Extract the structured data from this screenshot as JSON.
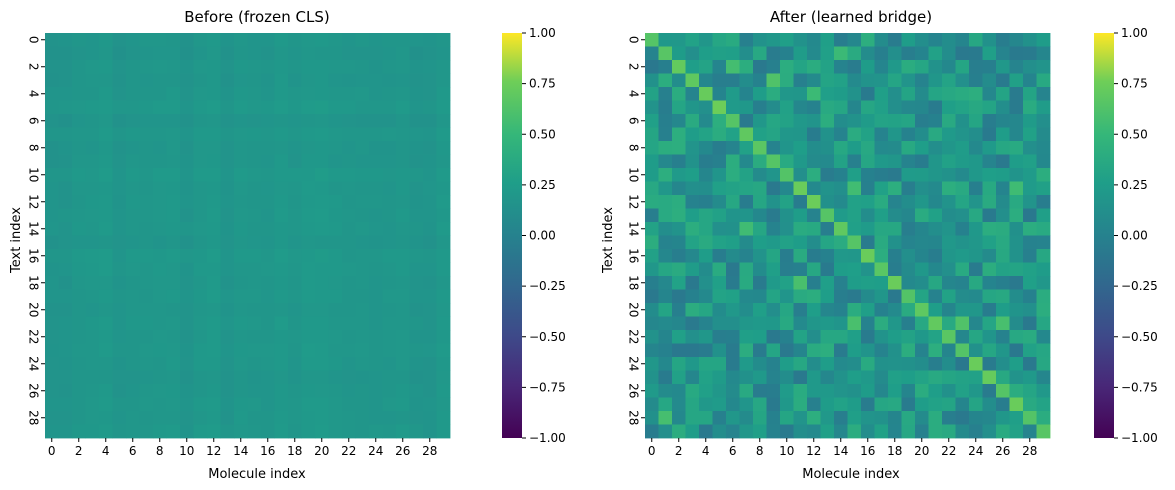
{
  "chart_data": [
    {
      "type": "heatmap",
      "title": "Before (frozen CLS)",
      "xlabel": "Molecule index",
      "ylabel": "Text index",
      "rows": 30,
      "cols": 30,
      "x_ticks": [
        "0",
        "2",
        "4",
        "6",
        "8",
        "10",
        "12",
        "14",
        "16",
        "18",
        "20",
        "22",
        "24",
        "26",
        "28"
      ],
      "y_ticks": [
        "0",
        "2",
        "4",
        "6",
        "8",
        "10",
        "12",
        "14",
        "16",
        "18",
        "20",
        "22",
        "24",
        "26",
        "28"
      ],
      "value_range": [
        -1.0,
        1.0
      ],
      "colormap": "viridis",
      "pattern": "near-uniform, values approximately 0.0 to 0.1 with no diagonal structure",
      "colorbar_ticks": [
        "1.00",
        "0.75",
        "0.50",
        "0.25",
        "0.00",
        "−0.25",
        "−0.50",
        "−0.75",
        "−1.00"
      ],
      "colorbar_values": [
        1.0,
        0.75,
        0.5,
        0.25,
        0.0,
        -0.25,
        -0.5,
        -0.75,
        -1.0
      ]
    },
    {
      "type": "heatmap",
      "title": "After (learned bridge)",
      "xlabel": "Molecule index",
      "ylabel": "Text index",
      "rows": 30,
      "cols": 30,
      "x_ticks": [
        "0",
        "2",
        "4",
        "6",
        "8",
        "10",
        "12",
        "14",
        "16",
        "18",
        "20",
        "22",
        "24",
        "26",
        "28"
      ],
      "y_ticks": [
        "0",
        "2",
        "4",
        "6",
        "8",
        "10",
        "12",
        "14",
        "16",
        "18",
        "20",
        "22",
        "24",
        "26",
        "28"
      ],
      "value_range": [
        -1.0,
        1.0
      ],
      "colormap": "viridis",
      "pattern": "strong diagonal around 0.45 to 0.55, off-diagonal values approximately -0.25 to 0.45",
      "colorbar_ticks": [
        "1.00",
        "0.75",
        "0.50",
        "0.25",
        "0.00",
        "−0.25",
        "−0.50",
        "−0.75",
        "−1.00"
      ],
      "colorbar_values": [
        1.0,
        0.75,
        0.5,
        0.25,
        0.0,
        -0.25,
        -0.5,
        -0.75,
        -1.0
      ]
    }
  ]
}
